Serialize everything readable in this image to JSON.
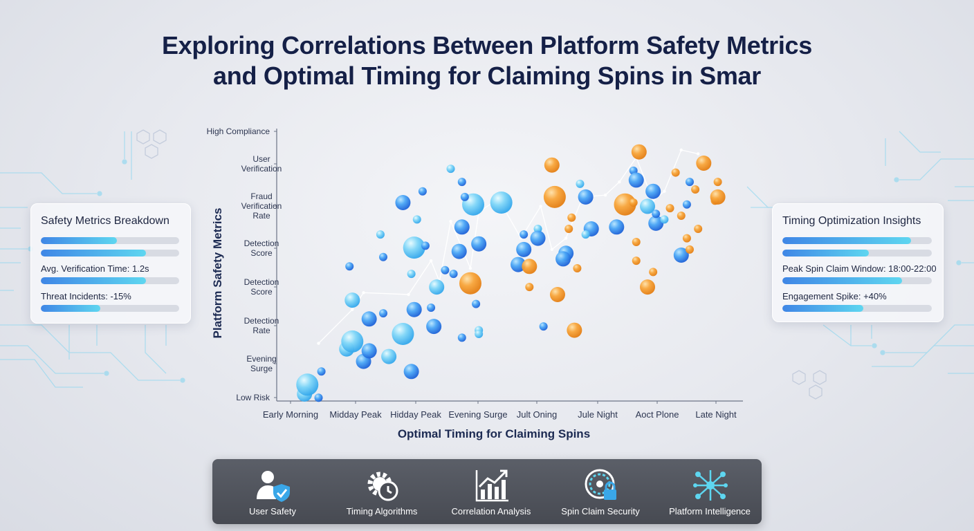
{
  "title": {
    "line1": "Exploring Correlations Between Platform Safety Metrics",
    "line2": "and Optimal Timing for Claiming Spins in Smar"
  },
  "left_panel": {
    "title": "Safety Metrics Breakdown",
    "progress": [
      0.55,
      0.76,
      0.76,
      0.43
    ],
    "metrics": [
      "Avg. Verification Time: 1.2s",
      "Threat Incidents: -15%"
    ]
  },
  "right_panel": {
    "title": "Timing Optimization Insights",
    "progress": [
      0.86,
      0.58,
      0.8,
      0.54
    ],
    "metrics": [
      "Peak Spin Claim Window: 18:00-22:00",
      "Engagement Spike: +40%"
    ]
  },
  "chart_data": {
    "type": "scatter",
    "xlabel": "Optimal Timing for Claiming Spins",
    "ylabel": "Platform Safety Metrics",
    "x_categories": [
      "Early Morning",
      "Midday Peak",
      "Hidday Peak",
      "Evening Surge",
      "Jult Oning",
      "Jule Night",
      "Aoct Plone",
      "Late Night"
    ],
    "y_categories": [
      "Low Risk",
      "Evening Surge",
      "Detection Rate",
      "Detection Score",
      "Detection Score",
      "Fraud Verification Rate",
      "User Verification",
      "High Compliance"
    ],
    "xlim": [
      0,
      7.8
    ],
    "ylim": [
      0,
      7
    ],
    "series": [
      {
        "color": "#3b8ef0",
        "points": [
          [
            0.15,
            0.15,
            2
          ],
          [
            0.4,
            0.05,
            1
          ],
          [
            0.2,
            0.4,
            3
          ],
          [
            0.45,
            0.75,
            1
          ],
          [
            0.9,
            1.35,
            2
          ],
          [
            1.2,
            1.02,
            2
          ],
          [
            1.0,
            1.55,
            3
          ],
          [
            1.3,
            1.3,
            2
          ],
          [
            1.0,
            2.65,
            2
          ],
          [
            0.95,
            3.55,
            1
          ],
          [
            1.3,
            2.15,
            2
          ],
          [
            1.55,
            2.3,
            1
          ],
          [
            1.65,
            1.15,
            2
          ],
          [
            2.05,
            0.75,
            2
          ],
          [
            1.9,
            1.75,
            3
          ],
          [
            2.1,
            2.4,
            2
          ],
          [
            1.5,
            4.4,
            1
          ],
          [
            1.55,
            3.8,
            1
          ],
          [
            1.9,
            5.25,
            2
          ],
          [
            2.1,
            4.05,
            3
          ],
          [
            2.05,
            3.35,
            1
          ],
          [
            2.3,
            4.1,
            1
          ],
          [
            2.45,
            1.95,
            2
          ],
          [
            2.4,
            2.45,
            1
          ],
          [
            2.15,
            4.8,
            1
          ],
          [
            2.25,
            5.55,
            1
          ],
          [
            2.95,
            4.6,
            2
          ],
          [
            2.8,
            3.35,
            1
          ],
          [
            2.5,
            3.0,
            2
          ],
          [
            2.65,
            3.45,
            1
          ],
          [
            2.9,
            3.95,
            2
          ],
          [
            3.25,
            4.15,
            2
          ],
          [
            2.75,
            6.15,
            1
          ],
          [
            2.95,
            5.8,
            1
          ],
          [
            3.15,
            5.2,
            3
          ],
          [
            3.0,
            5.4,
            1
          ],
          [
            3.25,
            1.85,
            1
          ],
          [
            3.65,
            5.25,
            3
          ],
          [
            3.2,
            2.55,
            1
          ],
          [
            2.95,
            1.65,
            1
          ],
          [
            3.25,
            1.75,
            1
          ],
          [
            4.05,
            4.0,
            2
          ],
          [
            3.95,
            3.6,
            2
          ],
          [
            4.05,
            4.4,
            1
          ],
          [
            4.3,
            4.55,
            1
          ],
          [
            4.3,
            4.3,
            2
          ],
          [
            4.4,
            1.95,
            1
          ],
          [
            4.8,
            3.9,
            2
          ],
          [
            5.05,
            5.75,
            1
          ],
          [
            5.15,
            5.4,
            2
          ],
          [
            4.75,
            3.75,
            2
          ],
          [
            5.25,
            4.55,
            2
          ],
          [
            5.15,
            4.4,
            1
          ],
          [
            5.7,
            4.6,
            2
          ],
          [
            6.0,
            6.1,
            1
          ],
          [
            6.05,
            5.85,
            2
          ],
          [
            6.25,
            5.15,
            2
          ],
          [
            6.35,
            5.55,
            2
          ],
          [
            6.4,
            4.7,
            2
          ],
          [
            6.4,
            4.95,
            1
          ],
          [
            6.55,
            4.8,
            1
          ],
          [
            6.95,
            5.2,
            1
          ],
          [
            7.0,
            5.8,
            1
          ],
          [
            6.85,
            3.85,
            2
          ]
        ]
      },
      {
        "color": "#f39a2a",
        "points": [
          [
            3.1,
            3.1,
            3
          ],
          [
            4.55,
            6.25,
            2
          ],
          [
            4.6,
            5.4,
            3
          ],
          [
            4.9,
            4.85,
            1
          ],
          [
            4.85,
            4.55,
            1
          ],
          [
            4.15,
            3.55,
            2
          ],
          [
            4.15,
            3.0,
            1
          ],
          [
            4.65,
            2.8,
            2
          ],
          [
            5.0,
            3.5,
            1
          ],
          [
            4.95,
            1.85,
            2
          ],
          [
            5.85,
            5.2,
            3
          ],
          [
            6.1,
            6.6,
            2
          ],
          [
            6.05,
            4.2,
            1
          ],
          [
            6.05,
            3.7,
            1
          ],
          [
            6.35,
            3.4,
            1
          ],
          [
            6.25,
            3.0,
            2
          ],
          [
            6.0,
            5.25,
            1
          ],
          [
            6.65,
            5.1,
            1
          ],
          [
            6.75,
            6.05,
            1
          ],
          [
            6.85,
            4.9,
            1
          ],
          [
            6.95,
            4.3,
            1
          ],
          [
            7.0,
            4.0,
            1
          ],
          [
            7.1,
            5.6,
            1
          ],
          [
            7.25,
            6.3,
            2
          ],
          [
            7.5,
            5.8,
            1
          ],
          [
            7.45,
            5.3,
            1
          ],
          [
            7.5,
            5.4,
            2
          ],
          [
            7.15,
            4.55,
            1
          ]
        ]
      }
    ],
    "trend_line": [
      [
        0.4,
        1.5
      ],
      [
        1.0,
        2.4
      ],
      [
        1.2,
        2.85
      ],
      [
        2.0,
        2.8
      ],
      [
        2.4,
        3.7
      ],
      [
        2.55,
        3.15
      ],
      [
        2.75,
        4.75
      ],
      [
        3.1,
        3.5
      ],
      [
        3.25,
        5.0
      ],
      [
        3.6,
        5.35
      ],
      [
        4.0,
        4.3
      ],
      [
        4.35,
        5.15
      ],
      [
        4.55,
        4.0
      ],
      [
        4.8,
        4.3
      ],
      [
        5.1,
        5.4
      ],
      [
        5.5,
        5.45
      ],
      [
        5.75,
        5.8
      ],
      [
        6.05,
        6.45
      ],
      [
        6.35,
        5.3
      ],
      [
        6.55,
        5.55
      ],
      [
        6.85,
        6.65
      ],
      [
        7.15,
        6.55
      ]
    ],
    "grid": false
  },
  "dock": {
    "items": [
      {
        "label": "User Safety",
        "icon": "user-shield-icon"
      },
      {
        "label": "Timing Algorithms",
        "icon": "gear-clock-icon"
      },
      {
        "label": "Correlation Analysis",
        "icon": "bar-chart-trend-icon"
      },
      {
        "label": "Spin Claim Security",
        "icon": "spinner-lock-icon"
      },
      {
        "label": "Platform Intelligence",
        "icon": "network-nodes-icon"
      }
    ]
  }
}
